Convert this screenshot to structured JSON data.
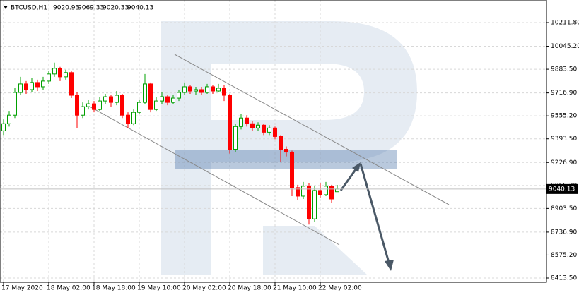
{
  "chart_data": {
    "type": "candlestick",
    "symbol": "BTCUSD,H1",
    "up_color": "#00a000",
    "down_color": "#ff0000",
    "grid": true,
    "ylim": [
      8383.7,
      10370.8
    ],
    "yticks": [
      {
        "value": 8413.5,
        "label": "8413.50"
      },
      {
        "value": 8575.2,
        "label": "8575.20"
      },
      {
        "value": 8736.9,
        "label": "8736.90"
      },
      {
        "value": 8903.5,
        "label": "8903.50"
      },
      {
        "value": 9065.2,
        "label": "9065.20"
      },
      {
        "value": 9226.9,
        "label": "9226.90"
      },
      {
        "value": 9393.5,
        "label": "9393.50"
      },
      {
        "value": 9555.2,
        "label": "9555.20"
      },
      {
        "value": 9716.9,
        "label": "9716.90"
      },
      {
        "value": 9883.5,
        "label": "9883.50"
      },
      {
        "value": 10045.2,
        "label": "10045.20"
      },
      {
        "value": 10211.8,
        "label": "10211.80"
      }
    ],
    "categories": [
      "17 May 2020",
      null,
      null,
      null,
      null,
      null,
      null,
      null,
      "18 May 02:00",
      null,
      null,
      null,
      null,
      null,
      null,
      null,
      "18 May 18:00",
      null,
      null,
      null,
      null,
      null,
      null,
      null,
      "19 May 10:00",
      null,
      null,
      null,
      null,
      null,
      null,
      null,
      "20 May 02:00",
      null,
      null,
      null,
      null,
      null,
      null,
      null,
      "20 May 18:00",
      null,
      null,
      null,
      null,
      null,
      null,
      null,
      "21 May 10:00",
      null,
      null,
      null,
      null,
      null,
      null,
      null,
      "22 May 02:00",
      null,
      null,
      null
    ],
    "ohlc": [
      [
        9450,
        9530,
        9420,
        9500
      ],
      [
        9500,
        9590,
        9480,
        9560
      ],
      [
        9560,
        9750,
        9540,
        9720
      ],
      [
        9720,
        9830,
        9700,
        9780
      ],
      [
        9780,
        9800,
        9710,
        9740
      ],
      [
        9740,
        9820,
        9720,
        9790
      ],
      [
        9790,
        9810,
        9730,
        9760
      ],
      [
        9760,
        9830,
        9740,
        9800
      ],
      [
        9800,
        9870,
        9780,
        9850
      ],
      [
        9850,
        9930,
        9830,
        9890
      ],
      [
        9890,
        9900,
        9800,
        9830
      ],
      [
        9830,
        9880,
        9810,
        9860
      ],
      [
        9860,
        9870,
        9680,
        9700
      ],
      [
        9700,
        9720,
        9470,
        9560
      ],
      [
        9560,
        9650,
        9540,
        9620
      ],
      [
        9620,
        9670,
        9600,
        9640
      ],
      [
        9640,
        9660,
        9580,
        9600
      ],
      [
        9600,
        9690,
        9590,
        9660
      ],
      [
        9660,
        9710,
        9640,
        9690
      ],
      [
        9690,
        9700,
        9620,
        9650
      ],
      [
        9650,
        9730,
        9630,
        9700
      ],
      [
        9700,
        9710,
        9540,
        9560
      ],
      [
        9560,
        9580,
        9470,
        9500
      ],
      [
        9500,
        9600,
        9490,
        9580
      ],
      [
        9580,
        9670,
        9570,
        9650
      ],
      [
        9650,
        9850,
        9640,
        9780
      ],
      [
        9780,
        9790,
        9580,
        9600
      ],
      [
        9600,
        9690,
        9590,
        9660
      ],
      [
        9660,
        9720,
        9640,
        9690
      ],
      [
        9690,
        9700,
        9630,
        9650
      ],
      [
        9650,
        9700,
        9640,
        9680
      ],
      [
        9680,
        9740,
        9660,
        9720
      ],
      [
        9720,
        9790,
        9700,
        9760
      ],
      [
        9760,
        9770,
        9710,
        9730
      ],
      [
        9730,
        9760,
        9700,
        9740
      ],
      [
        9740,
        9760,
        9700,
        9720
      ],
      [
        9720,
        9780,
        9710,
        9760
      ],
      [
        9760,
        9770,
        9710,
        9730
      ],
      [
        9730,
        9780,
        9720,
        9750
      ],
      [
        9750,
        9770,
        9660,
        9700
      ],
      [
        9700,
        9710,
        9290,
        9320
      ],
      [
        9320,
        9500,
        9300,
        9480
      ],
      [
        9480,
        9570,
        9460,
        9540
      ],
      [
        9540,
        9560,
        9480,
        9500
      ],
      [
        9500,
        9520,
        9450,
        9470
      ],
      [
        9470,
        9510,
        9450,
        9490
      ],
      [
        9490,
        9500,
        9420,
        9440
      ],
      [
        9440,
        9490,
        9420,
        9470
      ],
      [
        9470,
        9480,
        9390,
        9410
      ],
      [
        9410,
        9420,
        9230,
        9320
      ],
      [
        9320,
        9340,
        9270,
        9300
      ],
      [
        9300,
        9310,
        8990,
        9050
      ],
      [
        9050,
        9070,
        8960,
        8990
      ],
      [
        8990,
        9090,
        8970,
        9060
      ],
      [
        9060,
        9080,
        8790,
        8830
      ],
      [
        8830,
        9060,
        8810,
        9030
      ],
      [
        9030,
        9080,
        8980,
        9000
      ],
      [
        9000,
        9090,
        8990,
        9060
      ],
      [
        9060,
        9070,
        8940,
        8970
      ],
      [
        9020.93,
        9069.33,
        9020.33,
        9040.13
      ]
    ]
  }
}
